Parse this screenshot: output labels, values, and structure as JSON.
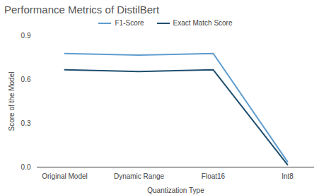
{
  "chart_data": {
    "type": "line",
    "title": "Performance Metrics of DistilBert",
    "x_label": "Quantization Type",
    "y_label": "Score of the Model",
    "categories": [
      "Original Model",
      "Dynamic Range",
      "Float16",
      "Int8"
    ],
    "series": [
      {
        "name": "F1-Score",
        "color": "#5e9ccf",
        "values": [
          0.778,
          0.767,
          0.778,
          0.037
        ]
      },
      {
        "name": "Exact Match Score",
        "color": "#1f4e6e",
        "values": [
          0.666,
          0.655,
          0.666,
          0.016
        ]
      }
    ],
    "ylim": [
      0,
      0.9
    ],
    "yticks": [
      {
        "value": 0,
        "label": "0.0"
      },
      0.3,
      0.6,
      0.9
    ],
    "grid": false,
    "legend": "top"
  }
}
